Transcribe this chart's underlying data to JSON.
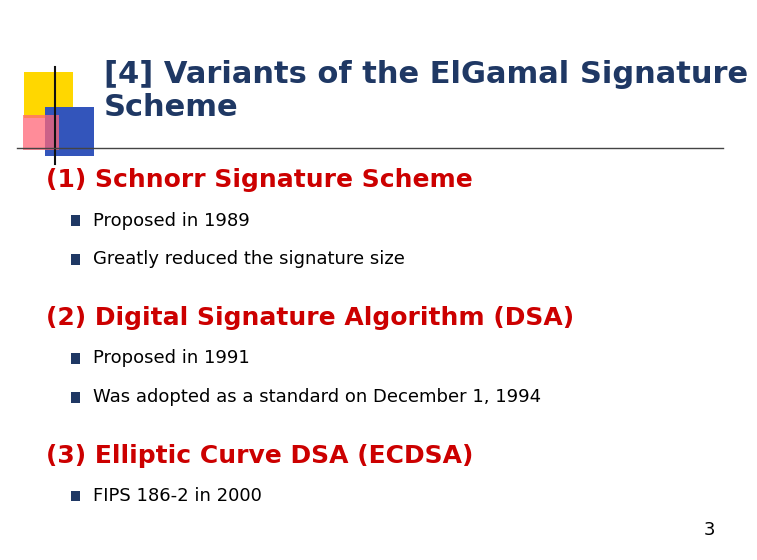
{
  "title_line1": "[4] Variants of the ElGamal Signature",
  "title_line2": "Scheme",
  "title_color": "#1F3864",
  "title_fontsize": 22,
  "section1_heading": "(1) Schnorr Signature Scheme",
  "section1_color": "#CC0000",
  "section1_fontsize": 18,
  "section1_bullets": [
    "Proposed in 1989",
    "Greatly reduced the signature size"
  ],
  "section2_heading": "(2) Digital Signature Algorithm (DSA)",
  "section2_color": "#CC0000",
  "section2_fontsize": 18,
  "section2_bullets": [
    "Proposed in 1991",
    "Was adopted as a standard on December 1, 1994"
  ],
  "section3_heading": "(3) Elliptic Curve DSA (ECDSA)",
  "section3_color": "#CC0000",
  "section3_fontsize": 18,
  "section3_bullets": [
    "FIPS 186-2 in 2000"
  ],
  "bullet_fontsize": 13,
  "bullet_color": "#000000",
  "bullet_square_color": "#1F3864",
  "bg_color": "#FFFFFF",
  "slide_num": "3",
  "slide_num_color": "#000000",
  "deco_yellow": "#FFD700",
  "deco_blue": "#3355BB",
  "deco_pink": "#FF6677",
  "hline_color": "#444444",
  "hline_y": 0.745
}
